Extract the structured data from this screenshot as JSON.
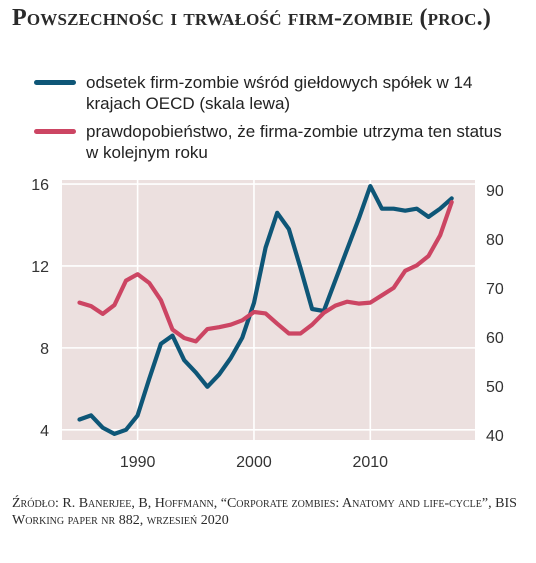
{
  "title": "Powszechnośc i trwałość firm-zombie (proc.)",
  "legend": [
    {
      "label": "odsetek firm-zombie wśród giełdowych spółek w 14 krajach OECD (skala lewa)",
      "color": "#0e5677"
    },
    {
      "label": "prawdopobieństwo, że firma-zombie utrzyma ten status w kolejnym roku",
      "color": "#cc4563"
    }
  ],
  "source": "Źródło: R. Banerjee, B, Hoffmann, “Corporate zombies: Anatomy and life-cycle”, BIS Working paper nr 882, wrzesień 2020",
  "colors": {
    "plot_background": "#ece0df",
    "grid": "#ffffff",
    "series_left": "#0e5677",
    "series_right": "#cc4563"
  },
  "chart_data": {
    "type": "line",
    "grid": "on",
    "xlim": [
      1983.5,
      2019
    ],
    "x_ticks": [
      "1990",
      "2000",
      "2010"
    ],
    "left_axis": {
      "ylim": [
        3.5,
        16.2
      ],
      "ticks": [
        "4",
        "8",
        "12",
        "16"
      ]
    },
    "right_axis": {
      "ylim": [
        39,
        92
      ],
      "ticks": [
        "40",
        "50",
        "60",
        "70",
        "80",
        "90"
      ]
    },
    "series": [
      {
        "name": "odsetek firm-zombie wśród giełdowych spółek w 14 krajach OECD (skala lewa)",
        "axis": "left",
        "x": [
          1985,
          1986,
          1987,
          1988,
          1989,
          1990,
          1991,
          1992,
          1993,
          1994,
          1995,
          1996,
          1997,
          1998,
          1999,
          2000,
          2001,
          2002,
          2003,
          2004,
          2005,
          2006,
          2007,
          2008,
          2009,
          2010,
          2011,
          2012,
          2013,
          2014,
          2015,
          2016,
          2017
        ],
        "values": [
          4.5,
          4.7,
          4.1,
          3.8,
          4.0,
          4.7,
          6.5,
          8.2,
          8.6,
          7.4,
          6.8,
          6.1,
          6.7,
          7.5,
          8.5,
          10.2,
          12.9,
          14.6,
          13.8,
          11.9,
          9.9,
          9.8,
          11.3,
          12.8,
          14.3,
          15.9,
          14.8,
          14.8,
          14.7,
          14.8,
          14.4,
          14.8,
          15.3
        ]
      },
      {
        "name": "prawdopobieństwo, że firma-zombie utrzyma ten status w kolejnym roku",
        "axis": "right",
        "x": [
          1985,
          1986,
          1987,
          1988,
          1989,
          1990,
          1991,
          1992,
          1993,
          1994,
          1995,
          1996,
          1997,
          1998,
          1999,
          2000,
          2001,
          2002,
          2003,
          2004,
          2005,
          2006,
          2007,
          2008,
          2009,
          2010,
          2011,
          2012,
          2013,
          2014,
          2015,
          2016,
          2017
        ],
        "values": [
          67,
          66.3,
          64.7,
          66.5,
          71.5,
          72.8,
          71,
          67.5,
          61.5,
          59.8,
          59.1,
          61.6,
          62,
          62.5,
          63.4,
          65.1,
          64.8,
          62.7,
          60.7,
          60.7,
          62.5,
          64.9,
          66.4,
          67.2,
          66.8,
          67,
          68.5,
          70,
          73.5,
          74.6,
          76.5,
          80.7,
          87.5
        ]
      }
    ]
  }
}
